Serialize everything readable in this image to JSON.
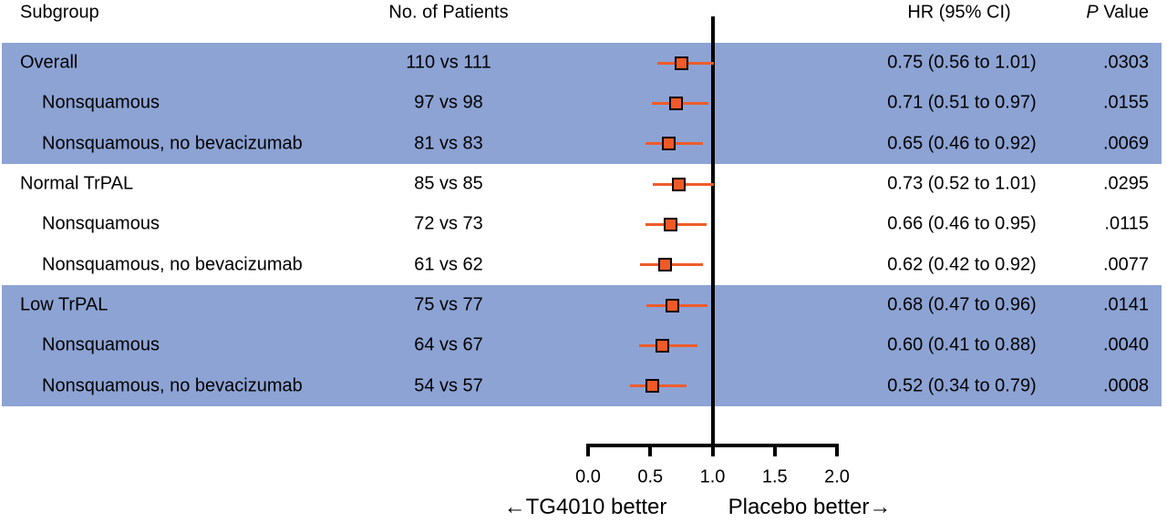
{
  "header": {
    "subgroup": "Subgroup",
    "patients": "No. of Patients",
    "hr": "HR (95% CI)",
    "p_italic": "P",
    "p_rest": " Value"
  },
  "axis": {
    "left_label": "←TG4010 better",
    "right_label": "Placebo better→"
  },
  "colors": {
    "band_colors": [
      "#8DA3D4",
      "#FFFFFF",
      "#8DA3D4"
    ],
    "marker_fill": "#EF5A28",
    "marker_border": "#000000",
    "ci_line": "#EE5C2B",
    "axis_color": "#000000",
    "text_color": "#000000"
  },
  "chart_data": {
    "type": "scatter",
    "subtype": "forest-plot",
    "columns": [
      "Subgroup",
      "No. of Patients",
      "HR (95% CI)",
      "P Value"
    ],
    "xlim": [
      0,
      2
    ],
    "x_ticks": [
      0.0,
      0.5,
      1.0,
      1.5,
      2.0
    ],
    "x_tick_labels": [
      "0.0",
      "0.5",
      "1.0",
      "1.5",
      "2.0"
    ],
    "reference_line_x": 1.0,
    "legend_left": "←TG4010 better",
    "legend_right": "Placebo better→",
    "rows": [
      {
        "subgroup": "Overall",
        "indent": 0,
        "patients": "110 vs 111",
        "hr": 0.75,
        "ci_low": 0.56,
        "ci_high": 1.01,
        "hr_ci_text": "0.75 (0.56 to 1.01)",
        "p_value": ".0303"
      },
      {
        "subgroup": "Nonsquamous",
        "indent": 1,
        "patients": "97 vs 98",
        "hr": 0.71,
        "ci_low": 0.51,
        "ci_high": 0.97,
        "hr_ci_text": "0.71 (0.51 to 0.97)",
        "p_value": ".0155"
      },
      {
        "subgroup": "Nonsquamous, no bevacizumab",
        "indent": 1,
        "patients": "81 vs 83",
        "hr": 0.65,
        "ci_low": 0.46,
        "ci_high": 0.92,
        "hr_ci_text": "0.65 (0.46 to 0.92)",
        "p_value": ".0069"
      },
      {
        "subgroup": "Normal TrPAL",
        "indent": 0,
        "patients": "85 vs 85",
        "hr": 0.73,
        "ci_low": 0.52,
        "ci_high": 1.01,
        "hr_ci_text": "0.73 (0.52 to 1.01)",
        "p_value": ".0295"
      },
      {
        "subgroup": "Nonsquamous",
        "indent": 1,
        "patients": "72 vs 73",
        "hr": 0.66,
        "ci_low": 0.46,
        "ci_high": 0.95,
        "hr_ci_text": "0.66 (0.46 to 0.95)",
        "p_value": ".0115"
      },
      {
        "subgroup": "Nonsquamous, no bevacizumab",
        "indent": 1,
        "patients": "61 vs 62",
        "hr": 0.62,
        "ci_low": 0.42,
        "ci_high": 0.92,
        "hr_ci_text": "0.62 (0.42 to 0.92)",
        "p_value": ".0077"
      },
      {
        "subgroup": "Low TrPAL",
        "indent": 0,
        "patients": "75 vs 77",
        "hr": 0.68,
        "ci_low": 0.47,
        "ci_high": 0.96,
        "hr_ci_text": "0.68 (0.47 to 0.96)",
        "p_value": ".0141"
      },
      {
        "subgroup": "Nonsquamous",
        "indent": 1,
        "patients": "64 vs 67",
        "hr": 0.6,
        "ci_low": 0.41,
        "ci_high": 0.88,
        "hr_ci_text": "0.60 (0.41 to 0.88)",
        "p_value": ".0040"
      },
      {
        "subgroup": "Nonsquamous, no bevacizumab",
        "indent": 1,
        "patients": "54 vs 57",
        "hr": 0.52,
        "ci_low": 0.34,
        "ci_high": 0.79,
        "hr_ci_text": "0.52 (0.34 to 0.79)",
        "p_value": ".0008"
      }
    ]
  }
}
